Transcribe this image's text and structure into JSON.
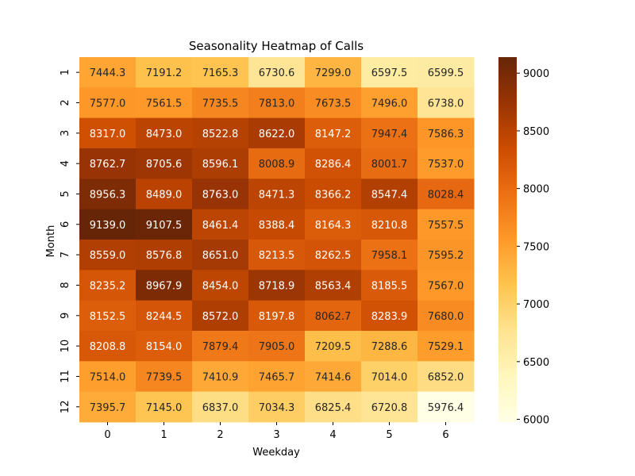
{
  "chart_data": {
    "type": "heatmap",
    "title": "Seasonality Heatmap of Calls",
    "xlabel": "Weekday",
    "ylabel": "Month",
    "x_categories": [
      "0",
      "1",
      "2",
      "3",
      "4",
      "5",
      "6"
    ],
    "y_categories": [
      "1",
      "2",
      "3",
      "4",
      "5",
      "6",
      "7",
      "8",
      "9",
      "10",
      "11",
      "12"
    ],
    "values": [
      [
        7444.3,
        7191.2,
        7165.3,
        6730.6,
        7299.0,
        6597.5,
        6599.5
      ],
      [
        7577.0,
        7561.5,
        7735.5,
        7813.0,
        7673.5,
        7496.0,
        6738.0
      ],
      [
        8317.0,
        8473.0,
        8522.8,
        8622.0,
        8147.2,
        7947.4,
        7586.3
      ],
      [
        8762.7,
        8705.6,
        8596.1,
        8008.9,
        8286.4,
        8001.7,
        7537.0
      ],
      [
        8956.3,
        8489.0,
        8763.0,
        8471.3,
        8366.2,
        8547.4,
        8028.4
      ],
      [
        9139.0,
        9107.5,
        8461.4,
        8388.4,
        8164.3,
        8210.8,
        7557.5
      ],
      [
        8559.0,
        8576.8,
        8651.0,
        8213.5,
        8262.5,
        7958.1,
        7595.2
      ],
      [
        8235.2,
        8967.9,
        8454.0,
        8718.9,
        8563.4,
        8185.5,
        7567.0
      ],
      [
        8152.5,
        8244.5,
        8572.0,
        8197.8,
        8062.7,
        8283.9,
        7680.0
      ],
      [
        8208.8,
        8154.0,
        7879.4,
        7905.0,
        7209.5,
        7288.6,
        7529.1
      ],
      [
        7514.0,
        7739.5,
        7410.9,
        7465.7,
        7414.6,
        7014.0,
        6852.0
      ],
      [
        7395.7,
        7145.0,
        6837.0,
        7034.3,
        6825.4,
        6720.8,
        5976.4
      ]
    ],
    "colormap": "YlOrBr",
    "color_range": [
      5976.4,
      9139.0
    ],
    "colorbar_ticks": [
      "6000",
      "6500",
      "7000",
      "7500",
      "8000",
      "8500",
      "9000"
    ]
  }
}
